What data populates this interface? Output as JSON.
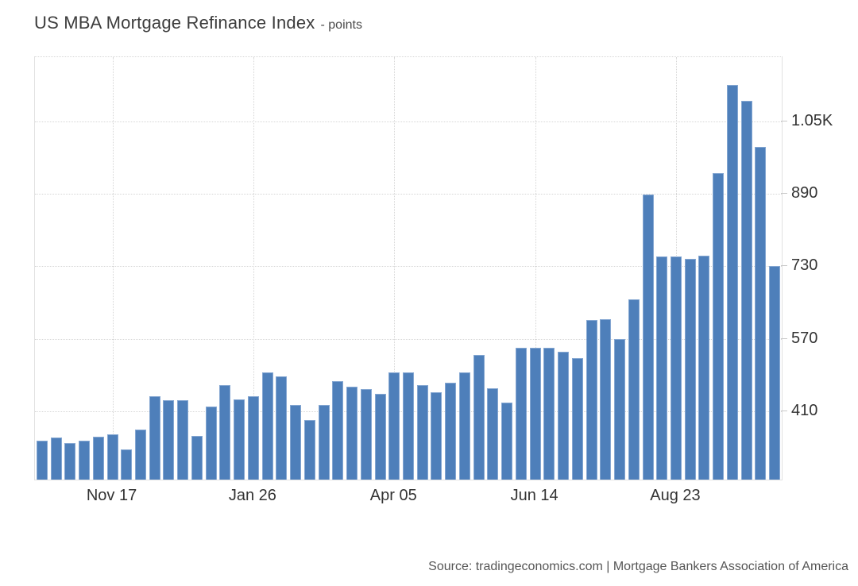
{
  "header": {
    "title": "US MBA Mortgage Refinance Index",
    "subtitle": "- points"
  },
  "footer": {
    "source": "Source: tradingeconomics.com | Mortgage Bankers Association of America"
  },
  "colors": {
    "bar": "#4e7fba",
    "bar_border": "#85a7d2",
    "grid": "#d6d6d6",
    "frame": "#e2e2e2",
    "axis_text": "#333333",
    "title_text": "#3d3d3d",
    "source_text": "#565656"
  },
  "chart_data": {
    "type": "bar",
    "title": "US MBA Mortgage Refinance Index",
    "ylabel": "points",
    "grid": true,
    "legend": false,
    "ylim": [
      260,
      1191
    ],
    "values": [
      346,
      353,
      340,
      346,
      354,
      359,
      327,
      371,
      444,
      435,
      435,
      356,
      421,
      469,
      437,
      444,
      496,
      487,
      424,
      392,
      424,
      477,
      465,
      459,
      449,
      496,
      496,
      469,
      453,
      474,
      497,
      535,
      462,
      430,
      550,
      550,
      550,
      541,
      528,
      611,
      614,
      569,
      657,
      888,
      752,
      751,
      747,
      754,
      936,
      1130,
      1095,
      994,
      730
    ],
    "x_ticks": [
      {
        "index": 5,
        "label": "Nov 17"
      },
      {
        "index": 15,
        "label": "Jan 26"
      },
      {
        "index": 25,
        "label": "Apr 05"
      },
      {
        "index": 35,
        "label": "Jun 14"
      },
      {
        "index": 45,
        "label": "Aug 23"
      }
    ],
    "y_ticks": [
      {
        "value": 410,
        "label": "410"
      },
      {
        "value": 570,
        "label": "570"
      },
      {
        "value": 730,
        "label": "730"
      },
      {
        "value": 890,
        "label": "890"
      },
      {
        "value": 1050,
        "label": "1.05K"
      }
    ]
  }
}
